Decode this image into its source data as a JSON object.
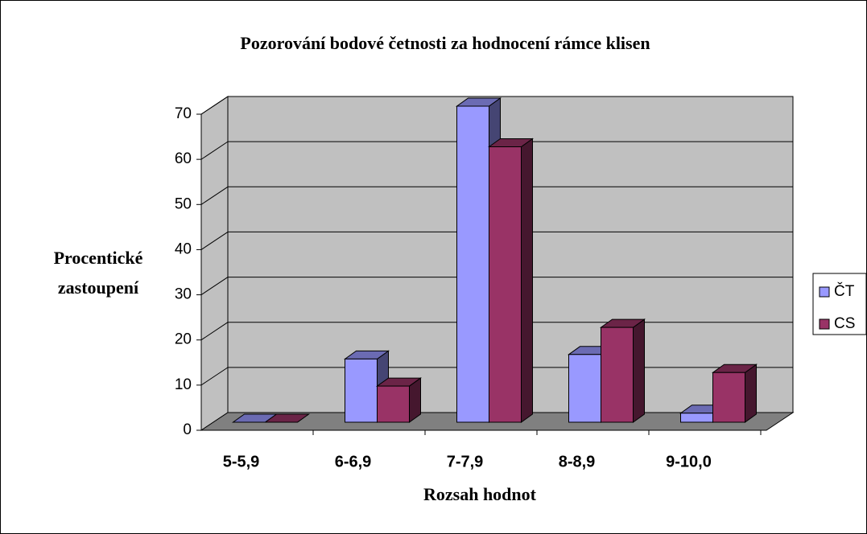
{
  "chart_data": {
    "type": "bar3d",
    "title": "Pozorování bodové četnosti za hodnocení rámce klisen",
    "x_label": "Rozsah hodnot",
    "y_label": [
      "Procentické",
      "zastoupení"
    ],
    "categories": [
      "5-5,9",
      "6-6,9",
      "7-7,9",
      "8-8,9",
      "9-10,0"
    ],
    "series": [
      {
        "name": "ČT",
        "color": "#9999ff",
        "values": [
          0,
          14,
          70,
          15,
          2
        ]
      },
      {
        "name": "CS",
        "color": "#993366",
        "values": [
          0,
          8,
          61,
          21,
          11
        ]
      }
    ],
    "ylim": [
      0,
      70
    ],
    "yticks": [
      0,
      10,
      20,
      30,
      40,
      50,
      60,
      70
    ],
    "grid": true,
    "legend": "right"
  }
}
